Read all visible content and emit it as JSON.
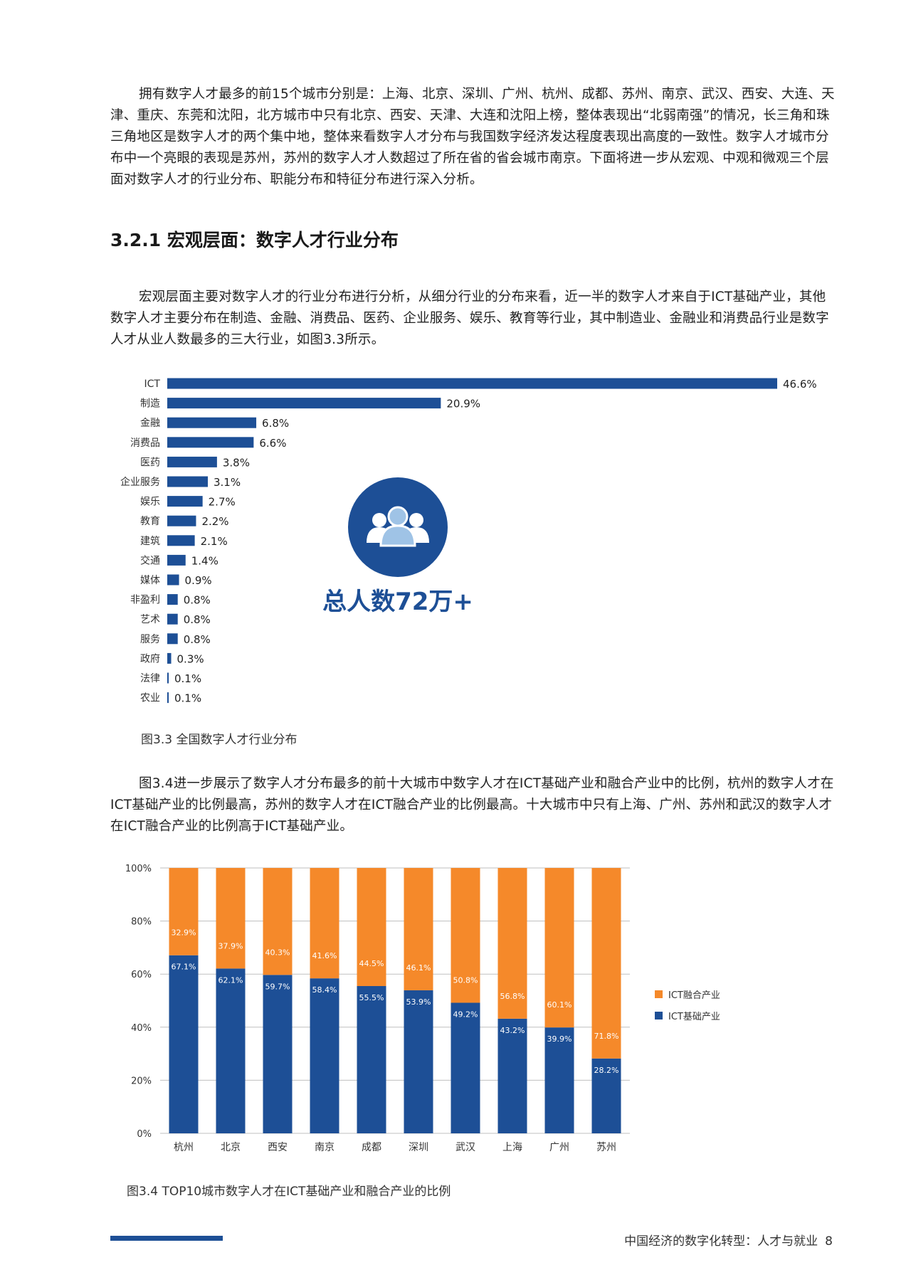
{
  "paragraphs": {
    "p1": "拥有数字人才最多的前15个城市分别是：上海、北京、深圳、广州、杭州、成都、苏州、南京、武汉、西安、大连、天津、重庆、东莞和沈阳，北方城市中只有北京、西安、天津、大连和沈阳上榜，整体表现出“北弱南强”的情况，长三角和珠三角地区是数字人才的两个集中地，整体来看数字人才分布与我国数字经济发达程度表现出高度的一致性。数字人才城市分布中一个亮眼的表现是苏州，苏州的数字人才人数超过了所在省的省会城市南京。下面将进一步从宏观、中观和微观三个层面对数字人才的行业分布、职能分布和特征分布进行深入分析。",
    "p2": "宏观层面主要对数字人才的行业分布进行分析，从细分行业的分布来看，近一半的数字人才来自于ICT基础产业，其他数字人才主要分布在制造、金融、消费品、医药、企业服务、娱乐、教育等行业，其中制造业、金融业和消费品行业是数字人才从业人数最多的三大行业，如图3.3所示。",
    "p3": "图3.4进一步展示了数字人才分布最多的前十大城市中数字人才在ICT基础产业和融合产业中的比例，杭州的数字人才在ICT基础产业的比例最高，苏州的数字人才在ICT融合产业的比例最高。十大城市中只有上海、广州、苏州和武汉的数字人才在ICT融合产业的比例高于ICT基础产业。"
  },
  "section_heading": "3.2.1 宏观层面：数字人才行业分布",
  "badge": {
    "text": "总人数72万+",
    "icon": "people-group-icon"
  },
  "captions": {
    "fig33": "图3.3 全国数字人才行业分布",
    "fig34": "图3.4 TOP10城市数字人才在ICT基础产业和融合产业的比例"
  },
  "footer": {
    "title": "中国经济的数字化转型：人才与就业",
    "page": "8"
  },
  "colors": {
    "blue": "#1d4f96",
    "orange": "#f5892a"
  },
  "chart_data": [
    {
      "type": "bar",
      "orientation": "horizontal",
      "categories": [
        "ICT",
        "制造",
        "金融",
        "消费品",
        "医药",
        "企业服务",
        "娱乐",
        "教育",
        "建筑",
        "交通",
        "媒体",
        "非盈利",
        "艺术",
        "服务",
        "政府",
        "法律",
        "农业"
      ],
      "values": [
        46.6,
        20.9,
        6.8,
        6.6,
        3.8,
        3.1,
        2.7,
        2.2,
        2.1,
        1.4,
        0.9,
        0.8,
        0.8,
        0.8,
        0.3,
        0.1,
        0.1
      ],
      "labels": [
        "46.6%",
        "20.9%",
        "6.8%",
        "6.6%",
        "3.8%",
        "3.1%",
        "2.7%",
        "2.2%",
        "2.1%",
        "1.4%",
        "0.9%",
        "0.8%",
        "0.8%",
        "0.8%",
        "0.3%",
        "0.1%",
        "0.1%"
      ],
      "xlim": [
        0,
        46.6
      ],
      "grid": false
    },
    {
      "type": "bar",
      "stacked": true,
      "categories": [
        "杭州",
        "北京",
        "西安",
        "南京",
        "成都",
        "深圳",
        "武汉",
        "上海",
        "广州",
        "苏州"
      ],
      "series": [
        {
          "name": "ICT基础产业",
          "values": [
            67.1,
            62.1,
            59.7,
            58.4,
            55.5,
            53.9,
            49.2,
            43.2,
            39.9,
            28.2
          ],
          "labels": [
            "67.1%",
            "62.1%",
            "59.7%",
            "58.4%",
            "55.5%",
            "53.9%",
            "49.2%",
            "43.2%",
            "39.9%",
            "28.2%"
          ]
        },
        {
          "name": "ICT融合产业",
          "values": [
            32.9,
            37.9,
            40.3,
            41.6,
            44.5,
            46.1,
            50.8,
            56.8,
            60.1,
            71.8
          ],
          "labels": [
            "32.9%",
            "37.9%",
            "40.3%",
            "41.6%",
            "44.5%",
            "46.1%",
            "50.8%",
            "56.8%",
            "60.1%",
            "71.8%"
          ]
        }
      ],
      "yticks": [
        "0%",
        "20%",
        "40%",
        "60%",
        "80%",
        "100%"
      ],
      "ylim": [
        0,
        100
      ],
      "grid": true,
      "legend": "right",
      "legend_entries": [
        "ICT融合产业",
        "ICT基础产业"
      ]
    }
  ]
}
